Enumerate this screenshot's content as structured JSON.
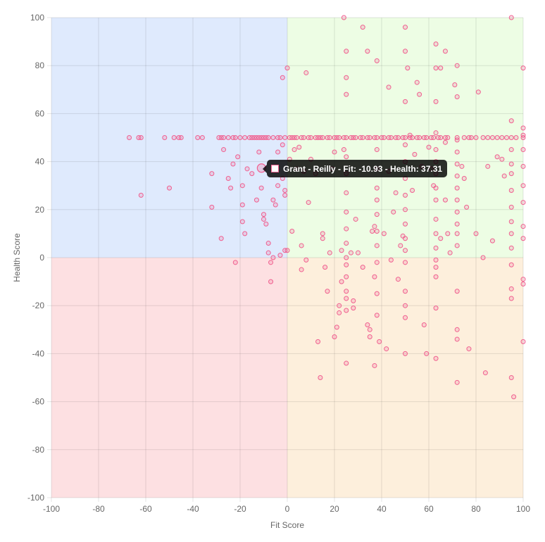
{
  "chart_data": {
    "type": "scatter",
    "xlabel": "Fit Score",
    "ylabel": "Health Score",
    "xlim": [
      -100,
      100
    ],
    "ylim": [
      -100,
      100
    ],
    "x_ticks": [
      "-100",
      "-80",
      "-60",
      "-40",
      "-20",
      "0",
      "20",
      "40",
      "60",
      "80",
      "100"
    ],
    "y_ticks": [
      "100",
      "80",
      "60",
      "40",
      "20",
      "0",
      "-20",
      "-40",
      "-60",
      "-80",
      "-100"
    ],
    "grid": true,
    "legend": "none",
    "quadrants": [
      {
        "x": [
          -100,
          0
        ],
        "y": [
          0,
          100
        ],
        "color": "#dfeafd"
      },
      {
        "x": [
          0,
          100
        ],
        "y": [
          0,
          100
        ],
        "color": "#edfde4"
      },
      {
        "x": [
          -100,
          0
        ],
        "y": [
          -100,
          0
        ],
        "color": "#fde0e2"
      },
      {
        "x": [
          0,
          100
        ],
        "y": [
          -100,
          0
        ],
        "color": "#fdefdc"
      }
    ],
    "point_color": "#f06090",
    "tooltip": {
      "text": "Grant - Reilly - Fit: -10.93 - Health: 37.31",
      "x": -10.93,
      "y": 37.31
    },
    "points": [
      [
        -67,
        50
      ],
      [
        -63,
        50
      ],
      [
        -62,
        50
      ],
      [
        -52,
        50
      ],
      [
        -48,
        50
      ],
      [
        -46,
        50
      ],
      [
        -45,
        50
      ],
      [
        -38,
        50
      ],
      [
        -36,
        50
      ],
      [
        -29,
        50
      ],
      [
        -28,
        50
      ],
      [
        -27,
        50
      ],
      [
        -25,
        50
      ],
      [
        -23,
        50
      ],
      [
        -22,
        50
      ],
      [
        -20,
        50
      ],
      [
        -18,
        50
      ],
      [
        -16,
        50
      ],
      [
        -15,
        50
      ],
      [
        -14,
        50
      ],
      [
        -13,
        50
      ],
      [
        -12,
        50
      ],
      [
        -11,
        50
      ],
      [
        -10,
        50
      ],
      [
        -9,
        50
      ],
      [
        -8,
        50
      ],
      [
        -6,
        50
      ],
      [
        -4,
        50
      ],
      [
        -3,
        50
      ],
      [
        -1,
        50
      ],
      [
        1,
        50
      ],
      [
        2,
        50
      ],
      [
        3,
        50
      ],
      [
        4,
        50
      ],
      [
        6,
        50
      ],
      [
        7,
        50
      ],
      [
        9,
        50
      ],
      [
        10,
        50
      ],
      [
        12,
        50
      ],
      [
        13,
        50
      ],
      [
        14,
        50
      ],
      [
        15,
        50
      ],
      [
        17,
        50
      ],
      [
        18,
        50
      ],
      [
        20,
        50
      ],
      [
        21,
        50
      ],
      [
        22,
        50
      ],
      [
        24,
        50
      ],
      [
        25,
        50
      ],
      [
        27,
        50
      ],
      [
        28,
        50
      ],
      [
        29,
        50
      ],
      [
        31,
        50
      ],
      [
        32,
        50
      ],
      [
        34,
        50
      ],
      [
        35,
        50
      ],
      [
        37,
        50
      ],
      [
        38,
        50
      ],
      [
        40,
        50
      ],
      [
        41,
        50
      ],
      [
        43,
        50
      ],
      [
        44,
        50
      ],
      [
        46,
        50
      ],
      [
        47,
        50
      ],
      [
        49,
        50
      ],
      [
        50,
        50
      ],
      [
        52,
        50
      ],
      [
        53,
        50
      ],
      [
        55,
        50
      ],
      [
        56,
        50
      ],
      [
        58,
        50
      ],
      [
        59,
        50
      ],
      [
        61,
        50
      ],
      [
        62,
        50
      ],
      [
        64,
        50
      ],
      [
        65,
        50
      ],
      [
        67,
        50
      ],
      [
        68,
        50
      ],
      [
        72,
        50
      ],
      [
        75,
        50
      ],
      [
        77,
        50
      ],
      [
        78,
        50
      ],
      [
        80,
        50
      ],
      [
        83,
        50
      ],
      [
        85,
        50
      ],
      [
        87,
        50
      ],
      [
        89,
        50
      ],
      [
        91,
        50
      ],
      [
        93,
        50
      ],
      [
        95,
        50
      ],
      [
        97,
        50
      ],
      [
        100,
        50
      ],
      [
        -62,
        26
      ],
      [
        -50,
        29
      ],
      [
        -32,
        21
      ],
      [
        -32,
        35
      ],
      [
        -28,
        8
      ],
      [
        -27,
        45
      ],
      [
        -25,
        33
      ],
      [
        -24,
        29
      ],
      [
        -23,
        39
      ],
      [
        -22,
        -2
      ],
      [
        -21,
        42
      ],
      [
        -19,
        30
      ],
      [
        -19,
        22
      ],
      [
        -19,
        15
      ],
      [
        -18,
        10
      ],
      [
        -17,
        37
      ],
      [
        -15,
        35
      ],
      [
        -13,
        24
      ],
      [
        -12,
        44
      ],
      [
        -11,
        29
      ],
      [
        -10,
        18
      ],
      [
        -10,
        16
      ],
      [
        -9,
        14
      ],
      [
        -8,
        6
      ],
      [
        -8,
        2
      ],
      [
        -7,
        -10
      ],
      [
        -7,
        -2
      ],
      [
        -6,
        0
      ],
      [
        -6,
        24
      ],
      [
        -5,
        22
      ],
      [
        -4,
        30
      ],
      [
        -4,
        44
      ],
      [
        -3,
        1
      ],
      [
        -2,
        47
      ],
      [
        -2,
        33
      ],
      [
        -1,
        28
      ],
      [
        -1,
        26
      ],
      [
        0,
        79
      ],
      [
        -2,
        75
      ],
      [
        -1,
        3
      ],
      [
        0,
        3
      ],
      [
        1,
        41
      ],
      [
        2,
        11
      ],
      [
        3,
        45
      ],
      [
        4,
        37
      ],
      [
        5,
        46
      ],
      [
        6,
        5
      ],
      [
        6,
        -5
      ],
      [
        7,
        36
      ],
      [
        8,
        77
      ],
      [
        8,
        -1
      ],
      [
        9,
        23
      ],
      [
        10,
        41
      ],
      [
        12,
        35
      ],
      [
        13,
        -35
      ],
      [
        14,
        -50
      ],
      [
        15,
        10
      ],
      [
        15,
        8
      ],
      [
        16,
        -4
      ],
      [
        17,
        -14
      ],
      [
        18,
        2
      ],
      [
        19,
        37
      ],
      [
        20,
        44
      ],
      [
        20,
        -33
      ],
      [
        21,
        -29
      ],
      [
        22,
        -20
      ],
      [
        22,
        -23
      ],
      [
        23,
        -10
      ],
      [
        23,
        3
      ],
      [
        24,
        100
      ],
      [
        24,
        45
      ],
      [
        25,
        86
      ],
      [
        25,
        75
      ],
      [
        25,
        68
      ],
      [
        25,
        42
      ],
      [
        25,
        35
      ],
      [
        25,
        27
      ],
      [
        25,
        19
      ],
      [
        25,
        12
      ],
      [
        25,
        6
      ],
      [
        25,
        0
      ],
      [
        25,
        -3
      ],
      [
        25,
        -8
      ],
      [
        25,
        -14
      ],
      [
        25,
        -17
      ],
      [
        25,
        -22
      ],
      [
        25,
        -44
      ],
      [
        27,
        2
      ],
      [
        28,
        -21
      ],
      [
        28,
        -18
      ],
      [
        29,
        16
      ],
      [
        30,
        2
      ],
      [
        32,
        96
      ],
      [
        32,
        -4
      ],
      [
        34,
        86
      ],
      [
        34,
        -28
      ],
      [
        35,
        -30
      ],
      [
        35,
        -33
      ],
      [
        36,
        11
      ],
      [
        37,
        -8
      ],
      [
        37,
        -45
      ],
      [
        37,
        13
      ],
      [
        38,
        82
      ],
      [
        38,
        45
      ],
      [
        38,
        37
      ],
      [
        38,
        29
      ],
      [
        38,
        24
      ],
      [
        38,
        18
      ],
      [
        38,
        11
      ],
      [
        38,
        5
      ],
      [
        38,
        -2
      ],
      [
        38,
        -15
      ],
      [
        38,
        -24
      ],
      [
        39,
        -35
      ],
      [
        41,
        10
      ],
      [
        42,
        -38
      ],
      [
        43,
        71
      ],
      [
        43,
        36
      ],
      [
        44,
        -1
      ],
      [
        45,
        19
      ],
      [
        46,
        27
      ],
      [
        47,
        -9
      ],
      [
        48,
        5
      ],
      [
        49,
        9
      ],
      [
        50,
        96
      ],
      [
        50,
        86
      ],
      [
        50,
        65
      ],
      [
        50,
        47
      ],
      [
        50,
        40
      ],
      [
        50,
        33
      ],
      [
        50,
        26
      ],
      [
        50,
        20
      ],
      [
        50,
        14
      ],
      [
        50,
        8
      ],
      [
        50,
        3
      ],
      [
        50,
        -2
      ],
      [
        50,
        -14
      ],
      [
        50,
        -20
      ],
      [
        50,
        -25
      ],
      [
        50,
        -40
      ],
      [
        51,
        79
      ],
      [
        52,
        51
      ],
      [
        53,
        28
      ],
      [
        54,
        43
      ],
      [
        55,
        73
      ],
      [
        56,
        68
      ],
      [
        57,
        38
      ],
      [
        58,
        -28
      ],
      [
        59,
        -40
      ],
      [
        60,
        46
      ],
      [
        61,
        37
      ],
      [
        62,
        30
      ],
      [
        63,
        89
      ],
      [
        63,
        79
      ],
      [
        63,
        65
      ],
      [
        63,
        52
      ],
      [
        63,
        45
      ],
      [
        63,
        40
      ],
      [
        63,
        35
      ],
      [
        63,
        29
      ],
      [
        63,
        24
      ],
      [
        63,
        16
      ],
      [
        63,
        10
      ],
      [
        63,
        4
      ],
      [
        63,
        -1
      ],
      [
        63,
        -4
      ],
      [
        63,
        -8
      ],
      [
        63,
        -21
      ],
      [
        63,
        -42
      ],
      [
        65,
        79
      ],
      [
        65,
        8
      ],
      [
        67,
        86
      ],
      [
        67,
        48
      ],
      [
        67,
        24
      ],
      [
        68,
        10
      ],
      [
        69,
        2
      ],
      [
        71,
        72
      ],
      [
        72,
        80
      ],
      [
        72,
        67
      ],
      [
        72,
        49
      ],
      [
        72,
        44
      ],
      [
        72,
        39
      ],
      [
        72,
        34
      ],
      [
        72,
        29
      ],
      [
        72,
        24
      ],
      [
        72,
        19
      ],
      [
        72,
        14
      ],
      [
        72,
        10
      ],
      [
        72,
        5
      ],
      [
        72,
        -14
      ],
      [
        72,
        -30
      ],
      [
        72,
        -34
      ],
      [
        72,
        -52
      ],
      [
        74,
        38
      ],
      [
        75,
        33
      ],
      [
        76,
        21
      ],
      [
        77,
        -38
      ],
      [
        80,
        10
      ],
      [
        81,
        69
      ],
      [
        83,
        0
      ],
      [
        84,
        -48
      ],
      [
        85,
        38
      ],
      [
        87,
        7
      ],
      [
        89,
        42
      ],
      [
        91,
        41
      ],
      [
        92,
        34
      ],
      [
        95,
        100
      ],
      [
        95,
        57
      ],
      [
        95,
        45
      ],
      [
        95,
        39
      ],
      [
        95,
        35
      ],
      [
        95,
        28
      ],
      [
        95,
        21
      ],
      [
        95,
        15
      ],
      [
        95,
        10
      ],
      [
        95,
        4
      ],
      [
        95,
        -3
      ],
      [
        95,
        -13
      ],
      [
        95,
        -17
      ],
      [
        95,
        -50
      ],
      [
        96,
        -58
      ],
      [
        100,
        79
      ],
      [
        100,
        54
      ],
      [
        100,
        51
      ],
      [
        100,
        45
      ],
      [
        100,
        38
      ],
      [
        100,
        30
      ],
      [
        100,
        23
      ],
      [
        100,
        13
      ],
      [
        100,
        8
      ],
      [
        100,
        -9
      ],
      [
        100,
        -11
      ],
      [
        100,
        -35
      ]
    ]
  }
}
